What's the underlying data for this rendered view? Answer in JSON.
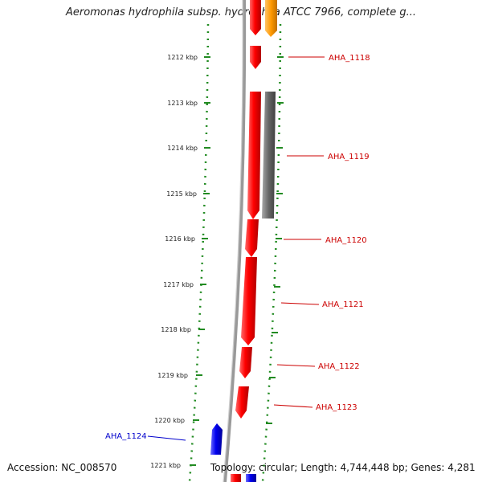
{
  "title": "Aeromonas hydrophila subsp. hydrophila ATCC 7966, complete g...",
  "footer": {
    "accession": "Accession: NC_008570",
    "topology": "Topology: circular; Length: 4,744,448 bp; Genes: 4,281"
  },
  "colors": {
    "forward_gene": "#ff0000",
    "reverse_gene": "#0000ee",
    "rna_gene": "#ff9900",
    "pseudo_gene": "#666666",
    "backbone": "#888888",
    "dotted_guide": "#228b22",
    "label_red": "#cc0000",
    "label_blue": "#0000cc"
  },
  "scale": {
    "ticks": [
      "1212 kbp",
      "1213 kbp",
      "1214 kbp",
      "1215 kbp",
      "1216 kbp",
      "1217 kbp",
      "1218 kbp",
      "1219 kbp",
      "1220 kbp",
      "1221 kbp"
    ]
  },
  "genes": [
    {
      "label": "AHA_1118",
      "strand": "forward"
    },
    {
      "label": "AHA_1119",
      "strand": "forward"
    },
    {
      "label": "AHA_1120",
      "strand": "forward"
    },
    {
      "label": "AHA_1121",
      "strand": "forward"
    },
    {
      "label": "AHA_1122",
      "strand": "forward"
    },
    {
      "label": "AHA_1123",
      "strand": "forward"
    },
    {
      "label": "AHA_1124",
      "strand": "reverse"
    }
  ]
}
